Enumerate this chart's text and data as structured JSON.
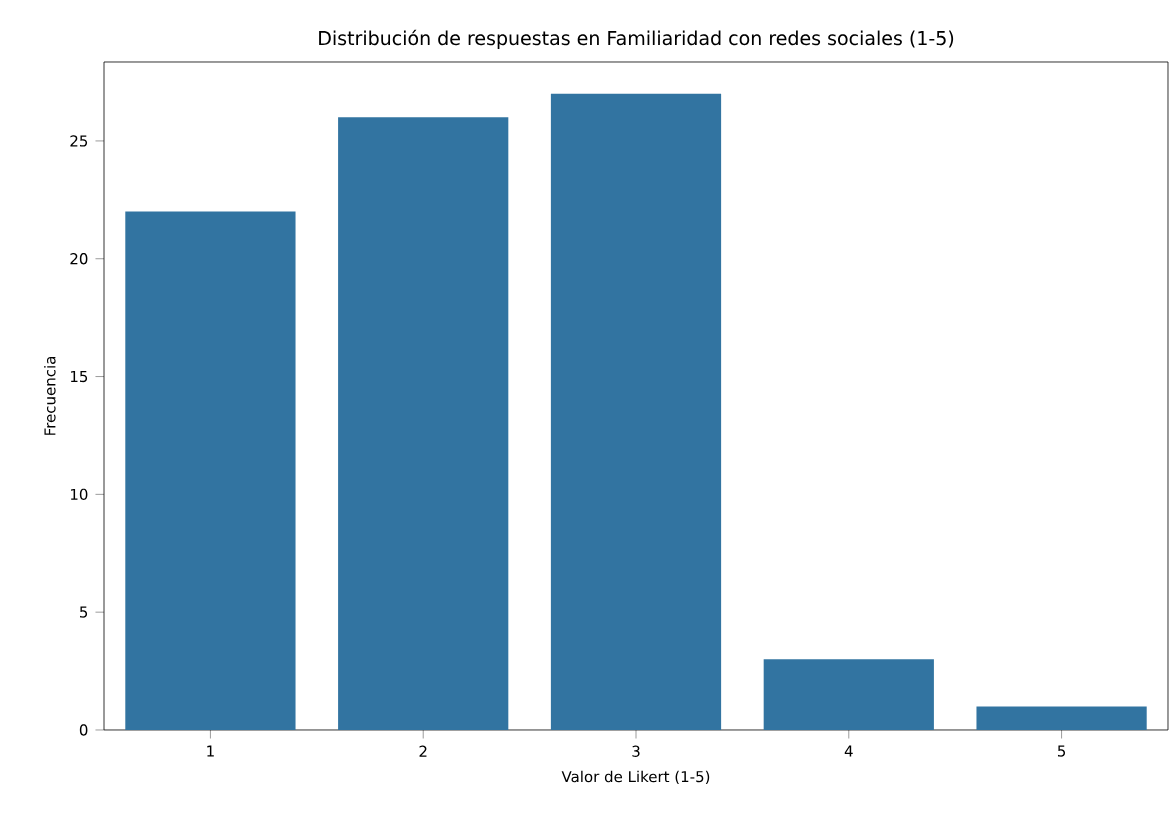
{
  "chart_data": {
    "type": "bar",
    "title": "Distribución de respuestas en Familiaridad con redes sociales (1-5)",
    "xlabel": "Valor de Likert (1-5)",
    "ylabel": "Frecuencia",
    "categories": [
      "1",
      "2",
      "3",
      "4",
      "5"
    ],
    "values": [
      22,
      26,
      27,
      3,
      1
    ],
    "color": "#3274a1",
    "ylim": [
      0,
      28.35
    ],
    "yticks": [
      0,
      5,
      10,
      15,
      20,
      25
    ]
  }
}
